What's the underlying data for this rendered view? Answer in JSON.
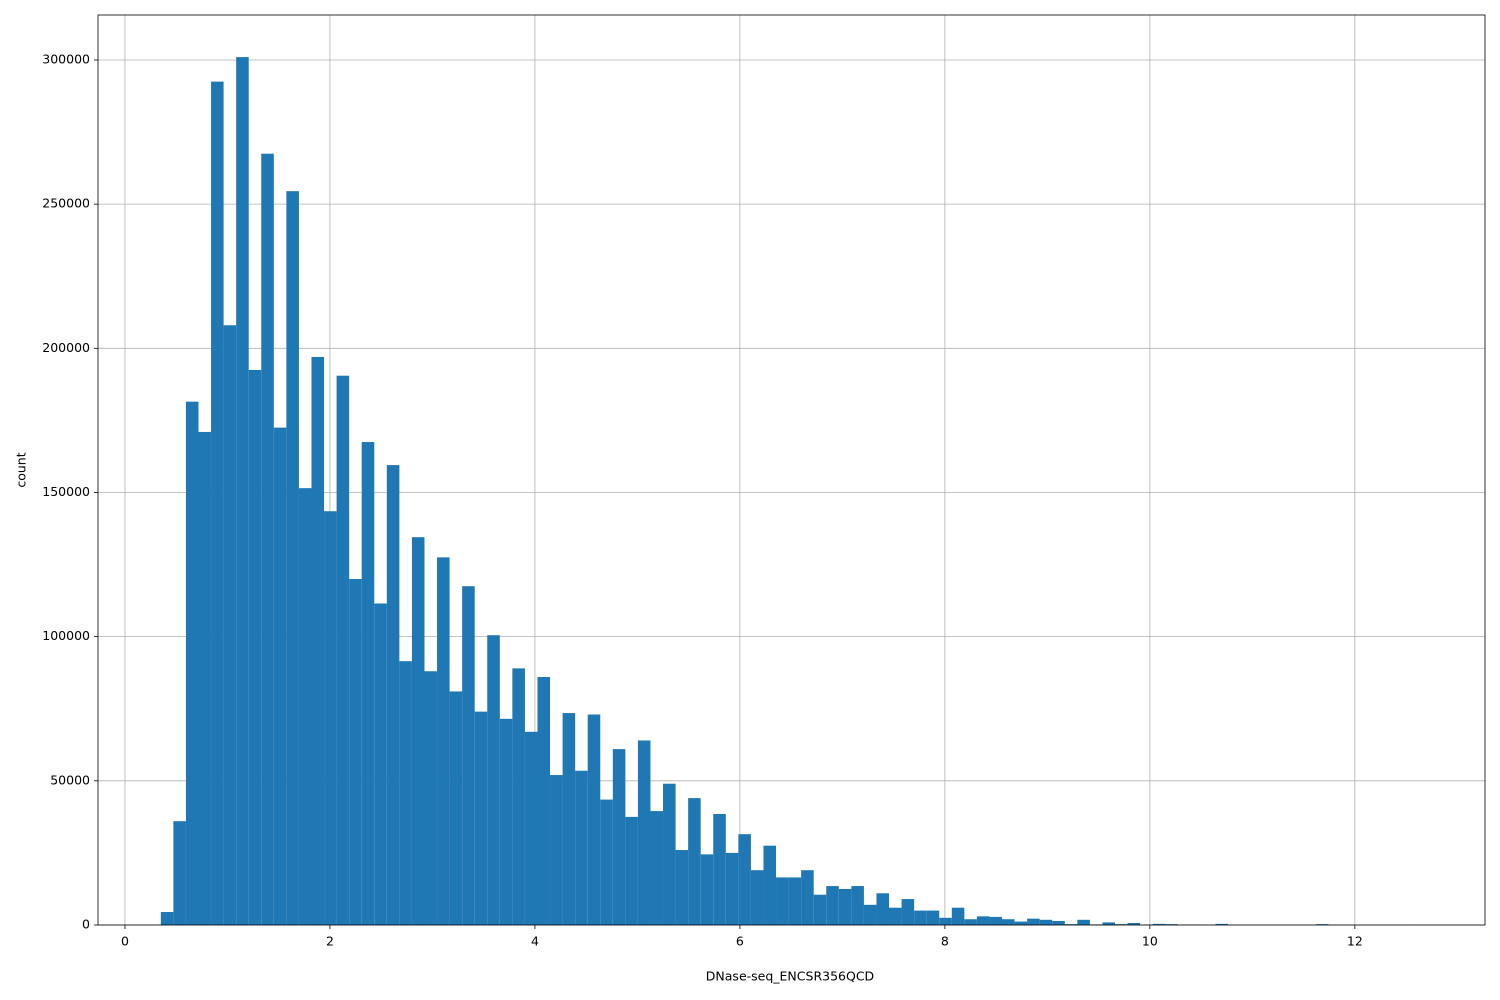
{
  "chart_data": {
    "type": "histogram",
    "xlabel": "DNase-seq_ENCSR356QCD",
    "ylabel": "count",
    "color": "#1f77b4",
    "grid": true,
    "bins": [
      0.35,
      0.4725,
      0.595,
      0.7175,
      0.84,
      0.9625,
      1.085,
      1.2075,
      1.33,
      1.4525,
      1.575,
      1.6975,
      1.82,
      1.9425,
      2.065,
      2.1875,
      2.31,
      2.4325,
      2.555,
      2.6775,
      2.8,
      2.9225,
      3.045,
      3.1675,
      3.29,
      3.4125,
      3.535,
      3.6575,
      3.78,
      3.9025,
      4.025,
      4.1475,
      4.27,
      4.3925,
      4.515,
      4.6375,
      4.76,
      4.8825,
      5.005,
      5.1275,
      5.25,
      5.3725,
      5.495,
      5.6175,
      5.74,
      5.8625,
      5.985,
      6.1075,
      6.23,
      6.3525,
      6.475,
      6.5975,
      6.72,
      6.8425,
      6.965,
      7.0875,
      7.21,
      7.3325,
      7.455,
      7.5775,
      7.7,
      7.8225,
      7.945,
      8.0675,
      8.19,
      8.3125,
      8.435,
      8.5575,
      8.68,
      8.8025,
      8.925,
      9.0475,
      9.17,
      9.2925,
      9.415,
      9.5375,
      9.66,
      9.7825,
      9.905,
      10.0275,
      10.15,
      10.2725,
      10.395,
      10.5175,
      10.64,
      10.7625,
      10.885,
      11.0075,
      11.13,
      11.2525,
      11.375,
      11.4975,
      11.62,
      11.7425,
      11.865,
      11.9875,
      12.11,
      12.2325,
      12.355,
      12.4775,
      12.6
    ],
    "values": [
      4500,
      36000,
      181500,
      171000,
      292500,
      208000,
      301000,
      192500,
      267500,
      172500,
      254500,
      151500,
      197000,
      143500,
      190500,
      120000,
      167500,
      111500,
      159500,
      91500,
      134500,
      88000,
      127500,
      81000,
      117500,
      74000,
      100500,
      71500,
      89000,
      67000,
      86000,
      52000,
      73500,
      53500,
      73000,
      43500,
      61000,
      37500,
      64000,
      39500,
      49000,
      26000,
      44000,
      24500,
      38500,
      25000,
      31500,
      19000,
      27500,
      16500,
      16500,
      19000,
      10500,
      13500,
      12500,
      13500,
      7000,
      11000,
      6000,
      9000,
      5000,
      5000,
      2500,
      6000,
      2000,
      3000,
      2800,
      2000,
      1200,
      2200,
      1800,
      1400,
      300,
      1800,
      200,
      900,
      300,
      700,
      100,
      400,
      300,
      100,
      100,
      50,
      400,
      0,
      0,
      0,
      0,
      0,
      0,
      0,
      300,
      0,
      0,
      0,
      0,
      0,
      0,
      50
    ],
    "xlim": [
      -0.263,
      13.27
    ],
    "xticks": [
      0,
      2,
      4,
      6,
      8,
      10,
      12
    ],
    "ylim": [
      0,
      315600
    ],
    "yticks": [
      0,
      50000,
      100000,
      150000,
      200000,
      250000,
      300000
    ]
  }
}
